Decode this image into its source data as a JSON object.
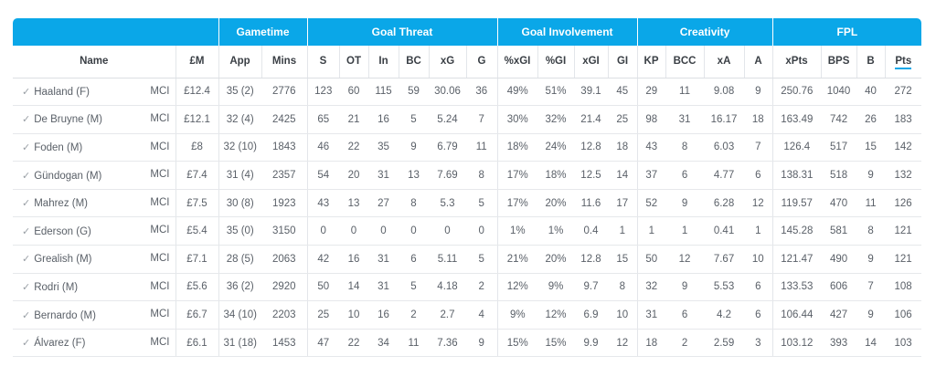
{
  "groups": [
    {
      "label": "",
      "span": 2
    },
    {
      "label": "Gametime",
      "span": 2
    },
    {
      "label": "Goal Threat",
      "span": 6
    },
    {
      "label": "Goal Involvement",
      "span": 4
    },
    {
      "label": "Creativity",
      "span": 4
    },
    {
      "label": "FPL",
      "span": 4
    }
  ],
  "columns": [
    "Name",
    "£M",
    "App",
    "Mins",
    "S",
    "OT",
    "In",
    "BC",
    "xG",
    "G",
    "%xGI",
    "%GI",
    "xGI",
    "GI",
    "KP",
    "BCC",
    "xA",
    "A",
    "xPts",
    "BPS",
    "B",
    "Pts"
  ],
  "sorted_column": "Pts",
  "rows": [
    {
      "name": "Haaland (F)",
      "team": "MCI",
      "cells": [
        "£12.4",
        "35 (2)",
        "2776",
        "123",
        "60",
        "115",
        "59",
        "30.06",
        "36",
        "49%",
        "51%",
        "39.1",
        "45",
        "29",
        "11",
        "9.08",
        "9",
        "250.76",
        "1040",
        "40",
        "272"
      ]
    },
    {
      "name": "De Bruyne (M)",
      "team": "MCI",
      "cells": [
        "£12.1",
        "32 (4)",
        "2425",
        "65",
        "21",
        "16",
        "5",
        "5.24",
        "7",
        "30%",
        "32%",
        "21.4",
        "25",
        "98",
        "31",
        "16.17",
        "18",
        "163.49",
        "742",
        "26",
        "183"
      ]
    },
    {
      "name": "Foden (M)",
      "team": "MCI",
      "cells": [
        "£8",
        "32 (10)",
        "1843",
        "46",
        "22",
        "35",
        "9",
        "6.79",
        "11",
        "18%",
        "24%",
        "12.8",
        "18",
        "43",
        "8",
        "6.03",
        "7",
        "126.4",
        "517",
        "15",
        "142"
      ]
    },
    {
      "name": "Gündogan (M)",
      "team": "MCI",
      "cells": [
        "£7.4",
        "31 (4)",
        "2357",
        "54",
        "20",
        "31",
        "13",
        "7.69",
        "8",
        "17%",
        "18%",
        "12.5",
        "14",
        "37",
        "6",
        "4.77",
        "6",
        "138.31",
        "518",
        "9",
        "132"
      ]
    },
    {
      "name": "Mahrez (M)",
      "team": "MCI",
      "cells": [
        "£7.5",
        "30 (8)",
        "1923",
        "43",
        "13",
        "27",
        "8",
        "5.3",
        "5",
        "17%",
        "20%",
        "11.6",
        "17",
        "52",
        "9",
        "6.28",
        "12",
        "119.57",
        "470",
        "11",
        "126"
      ]
    },
    {
      "name": "Ederson (G)",
      "team": "MCI",
      "cells": [
        "£5.4",
        "35 (0)",
        "3150",
        "0",
        "0",
        "0",
        "0",
        "0",
        "0",
        "1%",
        "1%",
        "0.4",
        "1",
        "1",
        "1",
        "0.41",
        "1",
        "145.28",
        "581",
        "8",
        "121"
      ]
    },
    {
      "name": "Grealish (M)",
      "team": "MCI",
      "cells": [
        "£7.1",
        "28 (5)",
        "2063",
        "42",
        "16",
        "31",
        "6",
        "5.11",
        "5",
        "21%",
        "20%",
        "12.8",
        "15",
        "50",
        "12",
        "7.67",
        "10",
        "121.47",
        "490",
        "9",
        "121"
      ]
    },
    {
      "name": "Rodri (M)",
      "team": "MCI",
      "cells": [
        "£5.6",
        "36 (2)",
        "2920",
        "50",
        "14",
        "31",
        "5",
        "4.18",
        "2",
        "12%",
        "9%",
        "9.7",
        "8",
        "32",
        "9",
        "5.53",
        "6",
        "133.53",
        "606",
        "7",
        "108"
      ]
    },
    {
      "name": "Bernardo (M)",
      "team": "MCI",
      "cells": [
        "£6.7",
        "34 (10)",
        "2203",
        "25",
        "10",
        "16",
        "2",
        "2.7",
        "4",
        "9%",
        "12%",
        "6.9",
        "10",
        "31",
        "6",
        "4.2",
        "6",
        "106.44",
        "427",
        "9",
        "106"
      ]
    },
    {
      "name": "Álvarez (F)",
      "team": "MCI",
      "cells": [
        "£6.1",
        "31 (18)",
        "1453",
        "47",
        "22",
        "34",
        "11",
        "7.36",
        "9",
        "15%",
        "15%",
        "9.9",
        "12",
        "18",
        "2",
        "2.59",
        "3",
        "103.12",
        "393",
        "14",
        "103"
      ]
    }
  ],
  "colors": {
    "header_bg": "#0aa7e8",
    "header_text": "#ffffff",
    "accent": "#0aa7e8"
  }
}
